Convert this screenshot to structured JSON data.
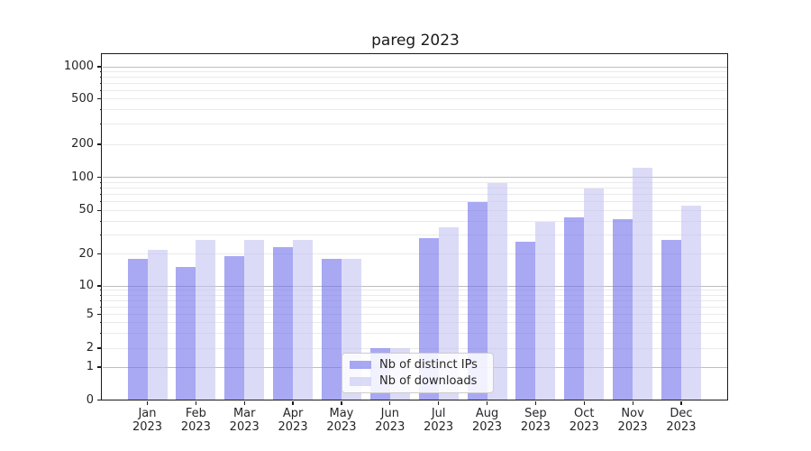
{
  "chart_data": {
    "type": "bar",
    "title": "pareg 2023",
    "categories": [
      "Jan 2023",
      "Feb 2023",
      "Mar 2023",
      "Apr 2023",
      "May 2023",
      "Jun 2023",
      "Jul 2023",
      "Aug 2023",
      "Sep 2023",
      "Oct 2023",
      "Nov 2023",
      "Dec 2023"
    ],
    "x_tick_month": [
      "Jan",
      "Feb",
      "Mar",
      "Apr",
      "May",
      "Jun",
      "Jul",
      "Aug",
      "Sep",
      "Oct",
      "Nov",
      "Dec"
    ],
    "x_tick_year": "2023",
    "series": [
      {
        "name": "Nb of distinct IPs",
        "color": "#A8A8F0",
        "color_rgba": "rgba(110,110,235,0.6)",
        "values": [
          18,
          15,
          19,
          23,
          18,
          2,
          28,
          60,
          26,
          43,
          42,
          27
        ]
      },
      {
        "name": "Nb of downloads",
        "color": "#DCDCF8",
        "color_rgba": "rgba(195,195,243,0.6)",
        "values": [
          22,
          27,
          27,
          27,
          18,
          2,
          35,
          88,
          39,
          79,
          122,
          55
        ]
      }
    ],
    "y_ticks": [
      0,
      1,
      2,
      5,
      10,
      20,
      50,
      100,
      200,
      500,
      1000
    ],
    "y_scale": "symlog",
    "ylim": [
      0,
      1000
    ],
    "grid": true,
    "legend_position": "lower center"
  },
  "colors": {
    "major_grid": "#bdbdbd",
    "minor_grid": "#eaeaea",
    "spine": "#1a1a1a",
    "text": "#262626",
    "legend_border": "#cccccc",
    "legend_bg": "rgba(255,255,255,0.85)"
  }
}
